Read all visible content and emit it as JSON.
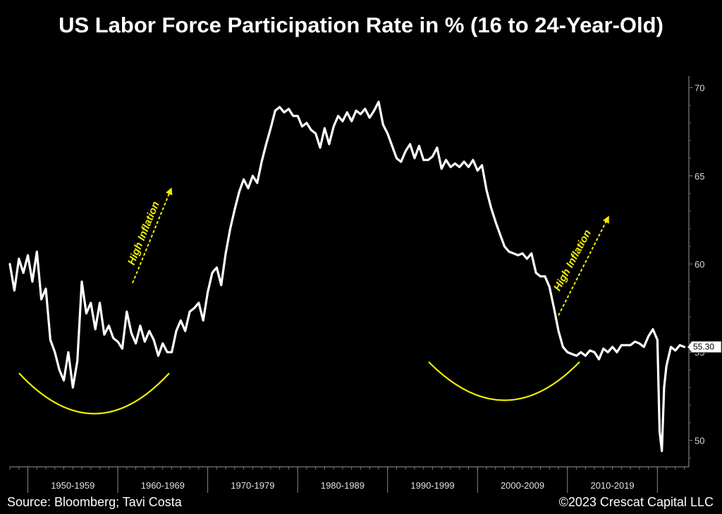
{
  "title": "US Labor Force Participation Rate in % (16 to 24-Year-Old)",
  "footer": {
    "source": "Source: Bloomberg; Tavi Costa",
    "copyright": "©2023 Crescat Capital LLC"
  },
  "colors": {
    "background": "#000000",
    "line": "#ffffff",
    "annotation": "#f2ef00"
  },
  "chart_data": {
    "type": "line",
    "title": "US Labor Force Participation Rate in % (16 to 24-Year-Old)",
    "xlabel": "",
    "ylabel": "",
    "xlim": [
      1948,
      2023.5
    ],
    "ylim": [
      48.5,
      70.5
    ],
    "y_axis_position": "right",
    "grid": false,
    "yticks": [
      50,
      55,
      60,
      65,
      70
    ],
    "ytick_labels": [
      "50",
      "55",
      "60",
      "65",
      "70"
    ],
    "decade_labels": [
      "1950-1959",
      "1960-1969",
      "1970-1979",
      "1980-1989",
      "1990-1999",
      "2000-2009",
      "2010-2019"
    ],
    "last_value_label": "55.30",
    "series": [
      {
        "x": [
          1948.0,
          1948.5,
          1949.0,
          1949.5,
          1950.0,
          1950.5,
          1951.0,
          1951.5,
          1952.0,
          1952.5,
          1953.0,
          1953.5,
          1954.0,
          1954.5,
          1955.0,
          1955.5,
          1956.0,
          1956.5,
          1957.0,
          1957.5,
          1958.0,
          1958.5,
          1959.0,
          1959.5,
          1960.0,
          1960.5,
          1961.0,
          1961.5,
          1962.0,
          1962.5,
          1963.0,
          1963.5,
          1964.0,
          1964.5,
          1965.0,
          1965.5,
          1966.0,
          1966.5,
          1967.0,
          1967.5,
          1968.0,
          1968.5,
          1969.0,
          1969.5,
          1970.0,
          1970.5,
          1971.0,
          1971.5,
          1972.0,
          1972.5,
          1973.0,
          1973.5,
          1974.0,
          1974.5,
          1975.0,
          1975.5,
          1976.0,
          1976.5,
          1977.0,
          1977.5,
          1978.0,
          1978.5,
          1979.0,
          1979.5,
          1980.0,
          1980.5,
          1981.0,
          1981.5,
          1982.0,
          1982.5,
          1983.0,
          1983.5,
          1984.0,
          1984.5,
          1985.0,
          1985.5,
          1986.0,
          1986.5,
          1987.0,
          1987.5,
          1988.0,
          1988.5,
          1989.0,
          1989.5,
          1990.0,
          1990.5,
          1991.0,
          1991.5,
          1992.0,
          1992.5,
          1993.0,
          1993.5,
          1994.0,
          1994.5,
          1995.0,
          1995.5,
          1996.0,
          1996.5,
          1997.0,
          1997.5,
          1998.0,
          1998.5,
          1999.0,
          1999.5,
          2000.0,
          2000.5,
          2001.0,
          2001.5,
          2002.0,
          2002.5,
          2003.0,
          2003.5,
          2004.0,
          2004.5,
          2005.0,
          2005.5,
          2006.0,
          2006.5,
          2007.0,
          2007.5,
          2008.0,
          2008.5,
          2009.0,
          2009.5,
          2010.0,
          2010.5,
          2011.0,
          2011.5,
          2012.0,
          2012.5,
          2013.0,
          2013.5,
          2014.0,
          2014.5,
          2015.0,
          2015.5,
          2016.0,
          2016.5,
          2017.0,
          2017.5,
          2018.0,
          2018.5,
          2019.0,
          2019.5,
          2020.0,
          2020.25,
          2020.5,
          2020.75,
          2021.0,
          2021.5,
          2022.0,
          2022.5,
          2023.0
        ],
        "y": [
          60.0,
          58.5,
          60.3,
          59.5,
          60.5,
          59.0,
          60.7,
          58.0,
          58.6,
          55.7,
          55.0,
          54.0,
          53.4,
          55.0,
          53.0,
          54.5,
          59.0,
          57.2,
          57.8,
          56.3,
          57.8,
          56.0,
          56.5,
          55.8,
          55.6,
          55.2,
          57.3,
          56.1,
          55.5,
          56.5,
          55.6,
          56.2,
          55.7,
          54.8,
          55.5,
          55.0,
          55.0,
          56.2,
          56.8,
          56.2,
          57.3,
          57.5,
          57.8,
          56.8,
          58.4,
          59.5,
          59.8,
          58.8,
          60.6,
          62.0,
          63.1,
          64.1,
          64.8,
          64.3,
          65.0,
          64.6,
          65.8,
          66.8,
          67.7,
          68.7,
          68.9,
          68.6,
          68.8,
          68.4,
          68.4,
          67.8,
          68.0,
          67.6,
          67.4,
          66.6,
          67.7,
          66.8,
          67.8,
          68.4,
          68.1,
          68.6,
          68.1,
          68.7,
          68.5,
          68.8,
          68.3,
          68.7,
          69.2,
          67.9,
          67.4,
          66.7,
          66.0,
          65.8,
          66.4,
          66.8,
          66.0,
          66.7,
          65.9,
          65.9,
          66.1,
          66.6,
          65.4,
          65.9,
          65.5,
          65.7,
          65.5,
          65.8,
          65.5,
          65.9,
          65.3,
          65.6,
          64.2,
          63.2,
          62.4,
          61.7,
          61.0,
          60.7,
          60.6,
          60.5,
          60.6,
          60.3,
          60.6,
          59.5,
          59.3,
          59.3,
          58.7,
          57.5,
          56.2,
          55.3,
          55.0,
          54.9,
          54.8,
          55.0,
          54.8,
          55.1,
          55.0,
          54.6,
          55.2,
          55.0,
          55.3,
          55.0,
          55.4,
          55.4,
          55.4,
          55.6,
          55.5,
          55.3,
          55.9,
          56.3,
          55.7,
          50.5,
          49.4,
          53.0,
          54.2,
          55.3,
          55.1,
          55.4,
          55.3
        ]
      }
    ],
    "annotations": [
      {
        "text": "High Inflation",
        "period": "1965-1969"
      },
      {
        "text": "High Inflation",
        "period": "2021-2023"
      }
    ]
  }
}
